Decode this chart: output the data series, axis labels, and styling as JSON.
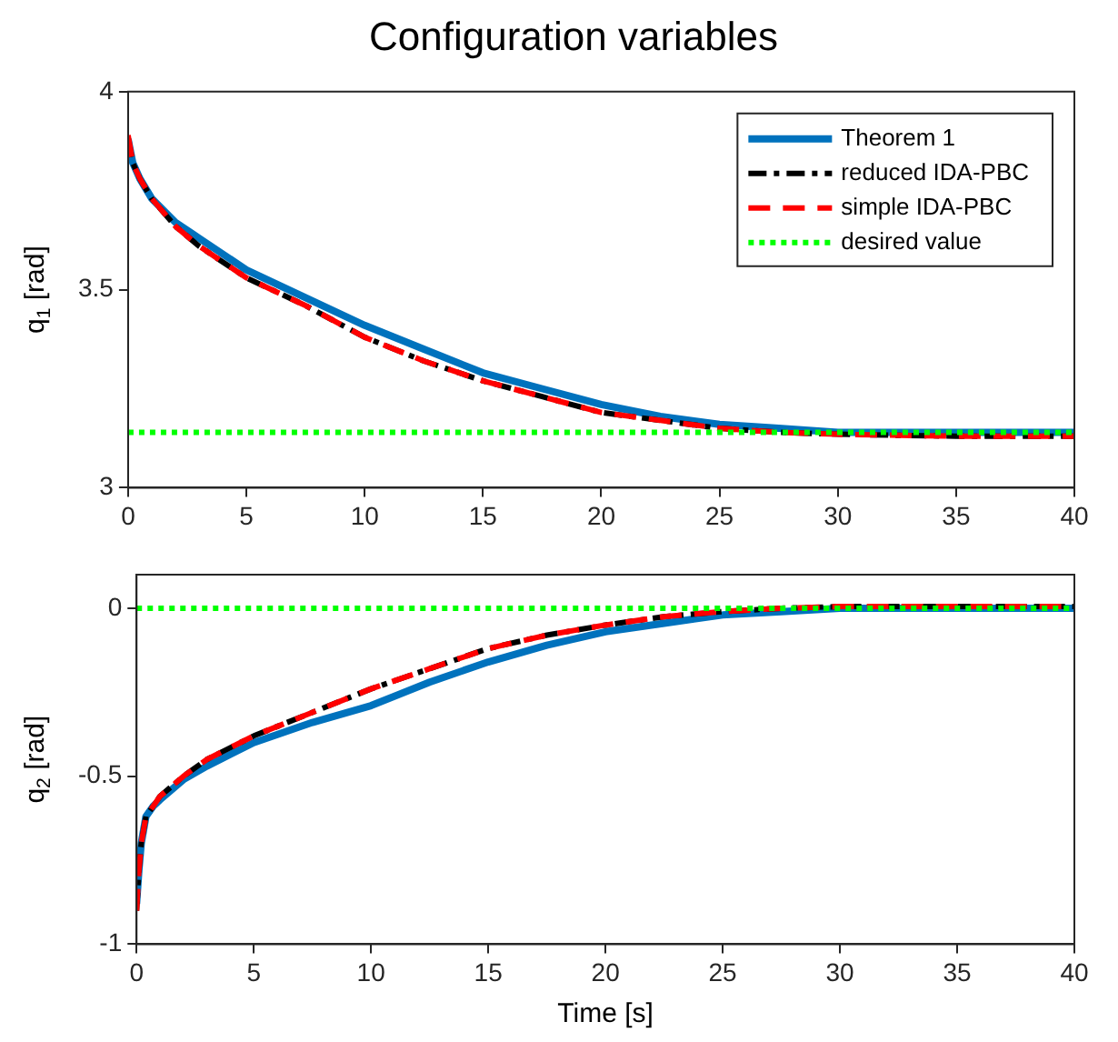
{
  "chart_data": [
    {
      "type": "line",
      "title": "Configuration variables",
      "ylabel": "q$_{1}$ [rad]",
      "xlim": [
        0,
        40
      ],
      "xticks": [
        0,
        5,
        10,
        15,
        20,
        25,
        30,
        35,
        40
      ],
      "ylim": [
        3,
        4
      ],
      "yticks": [
        3,
        3.5,
        4
      ],
      "grid": false,
      "legend": "top right",
      "marker": "none",
      "series": [
        {
          "name": "Theorem 1",
          "color": "#0072bd",
          "line_style": "solid",
          "x": [
            0,
            0.2,
            0.5,
            1,
            2,
            3,
            5,
            7.5,
            10,
            12.5,
            15,
            17.5,
            20,
            22.5,
            25,
            27.5,
            30,
            35,
            40
          ],
          "values": [
            3.88,
            3.82,
            3.78,
            3.73,
            3.67,
            3.63,
            3.55,
            3.48,
            3.41,
            3.35,
            3.29,
            3.25,
            3.21,
            3.18,
            3.16,
            3.15,
            3.14,
            3.14,
            3.14
          ]
        },
        {
          "name": "reduced IDA-PBC",
          "color": "#000000",
          "line_style": "dashdot",
          "x": [
            0,
            0.2,
            0.5,
            1,
            2,
            3,
            5,
            7.5,
            10,
            12.5,
            15,
            17.5,
            20,
            22.5,
            25,
            27.5,
            30,
            35,
            40
          ],
          "values": [
            3.88,
            3.82,
            3.78,
            3.73,
            3.66,
            3.61,
            3.53,
            3.46,
            3.38,
            3.32,
            3.27,
            3.23,
            3.19,
            3.17,
            3.15,
            3.14,
            3.135,
            3.13,
            3.13
          ]
        },
        {
          "name": "simple IDA-PBC",
          "color": "#ff0000",
          "line_style": "dashed",
          "x": [
            0,
            0.2,
            0.5,
            1,
            2,
            3,
            5,
            7.5,
            10,
            12.5,
            15,
            17.5,
            20,
            22.5,
            25,
            27.5,
            30,
            35,
            40
          ],
          "values": [
            3.89,
            3.82,
            3.78,
            3.73,
            3.66,
            3.61,
            3.53,
            3.46,
            3.38,
            3.32,
            3.27,
            3.23,
            3.19,
            3.17,
            3.15,
            3.14,
            3.135,
            3.13,
            3.13
          ]
        },
        {
          "name": "desired value",
          "color": "#00ff00",
          "line_style": "dotted",
          "x": [
            0,
            40
          ],
          "values": [
            3.14,
            3.14
          ]
        }
      ]
    },
    {
      "type": "line",
      "xlabel": "Time [s]",
      "ylabel": "q$_{2}$ [rad]",
      "xlim": [
        0,
        40
      ],
      "xticks": [
        0,
        5,
        10,
        15,
        20,
        25,
        30,
        35,
        40
      ],
      "ylim": [
        -1,
        0.1
      ],
      "yticks": [
        -1,
        -0.5,
        0
      ],
      "grid": false,
      "marker": "none",
      "series": [
        {
          "color": "#0072bd",
          "line_style": "solid",
          "x": [
            0,
            0.1,
            0.2,
            0.4,
            0.7,
            1,
            2,
            3,
            5,
            7.5,
            10,
            12.5,
            15,
            17.5,
            20,
            22.5,
            25,
            27.5,
            30,
            35,
            40
          ],
          "values": [
            -0.88,
            -0.78,
            -0.7,
            -0.62,
            -0.59,
            -0.57,
            -0.51,
            -0.47,
            -0.4,
            -0.34,
            -0.29,
            -0.22,
            -0.16,
            -0.11,
            -0.07,
            -0.045,
            -0.02,
            -0.01,
            0,
            0,
            0
          ]
        },
        {
          "color": "#000000",
          "line_style": "dashdot",
          "x": [
            0,
            0.1,
            0.2,
            0.4,
            0.7,
            1,
            2,
            3,
            5,
            7.5,
            10,
            12.5,
            15,
            17.5,
            20,
            22.5,
            25,
            27.5,
            30,
            35,
            40
          ],
          "values": [
            -0.9,
            -0.78,
            -0.7,
            -0.62,
            -0.59,
            -0.56,
            -0.5,
            -0.45,
            -0.38,
            -0.31,
            -0.24,
            -0.18,
            -0.12,
            -0.08,
            -0.05,
            -0.025,
            -0.01,
            0,
            0.005,
            0.005,
            0.005
          ]
        },
        {
          "color": "#ff0000",
          "line_style": "dashed",
          "x": [
            0,
            0.1,
            0.2,
            0.4,
            0.7,
            1,
            2,
            3,
            5,
            7.5,
            10,
            12.5,
            15,
            17.5,
            20,
            22.5,
            25,
            27.5,
            30,
            35,
            40
          ],
          "values": [
            -0.9,
            -0.78,
            -0.7,
            -0.62,
            -0.59,
            -0.56,
            -0.5,
            -0.45,
            -0.38,
            -0.31,
            -0.24,
            -0.18,
            -0.12,
            -0.08,
            -0.05,
            -0.025,
            -0.01,
            0,
            0.005,
            0.005,
            0.005
          ]
        },
        {
          "color": "#00ff00",
          "line_style": "dotted",
          "x": [
            0,
            40
          ],
          "values": [
            0,
            0
          ]
        }
      ]
    }
  ]
}
